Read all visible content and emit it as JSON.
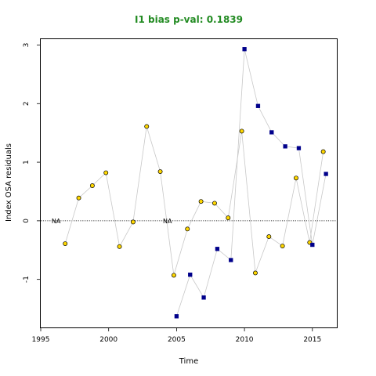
{
  "chart_data": {
    "type": "scatter",
    "title": "I1 bias p-val: 0.1839",
    "title_color": "#228B22",
    "xlabel": "Time",
    "ylabel": "Index OSA residuals",
    "xlim": [
      1995,
      2016.8
    ],
    "ylim": [
      -1.82,
      3.1
    ],
    "xticks": [
      "1995",
      "2000",
      "2005",
      "2010",
      "2015"
    ],
    "yticks": [
      "-1",
      "0",
      "1",
      "2",
      "3"
    ],
    "reference_line": {
      "y": 0,
      "style": "dotted",
      "color": "#000000"
    },
    "connector_color": "#c8c8c8",
    "annotations": [
      {
        "x": 1995.8,
        "y": 0,
        "text": "NA"
      },
      {
        "x": 2004.0,
        "y": 0,
        "text": "NA"
      }
    ],
    "series": [
      {
        "marker": "circle",
        "fill": "#FFD700",
        "stroke": "#000000",
        "points": [
          [
            1996.8,
            -0.39
          ],
          [
            1997.8,
            0.39
          ],
          [
            1998.8,
            0.6
          ],
          [
            1999.8,
            0.82
          ],
          [
            2000.8,
            -0.44
          ],
          [
            2001.8,
            -0.02
          ],
          [
            2002.8,
            1.61
          ],
          [
            2003.8,
            0.84
          ],
          [
            2004.8,
            -0.93
          ],
          [
            2005.8,
            -0.14
          ],
          [
            2006.8,
            0.33
          ],
          [
            2007.8,
            0.3
          ],
          [
            2008.8,
            0.05
          ],
          [
            2009.8,
            1.53
          ],
          [
            2010.8,
            -0.89
          ],
          [
            2011.8,
            -0.27
          ],
          [
            2012.8,
            -0.43
          ],
          [
            2013.8,
            0.73
          ],
          [
            2014.8,
            -0.37
          ],
          [
            2015.8,
            1.18
          ]
        ]
      },
      {
        "marker": "square",
        "fill": "#00008B",
        "stroke": "#00008B",
        "points": [
          [
            2005.0,
            -1.63
          ],
          [
            2006.0,
            -0.92
          ],
          [
            2007.0,
            -1.31
          ],
          [
            2008.0,
            -0.48
          ],
          [
            2009.0,
            -0.67
          ],
          [
            2010.0,
            2.93
          ],
          [
            2011.0,
            1.96
          ],
          [
            2012.0,
            1.51
          ],
          [
            2013.0,
            1.27
          ],
          [
            2014.0,
            1.24
          ],
          [
            2015.0,
            -0.41
          ],
          [
            2016.0,
            0.8
          ]
        ]
      }
    ]
  }
}
